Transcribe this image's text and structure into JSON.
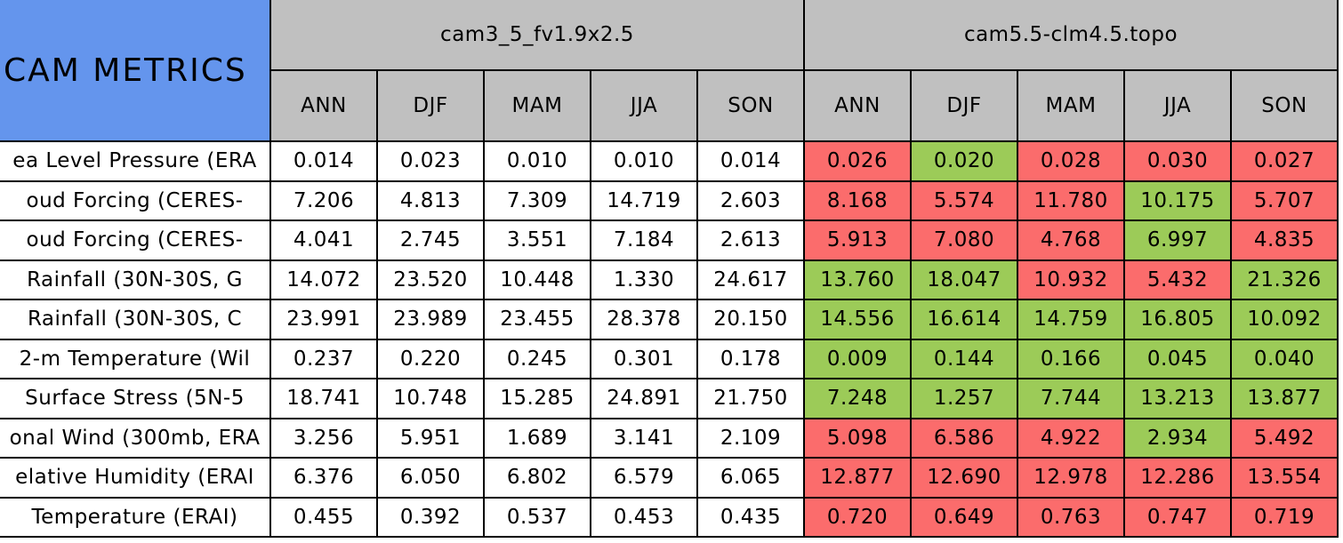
{
  "table": {
    "title": "CAM METRICS",
    "fills": {
      "header": "#c0c0c0",
      "title": "#6495ed",
      "better": "#9ccb58",
      "worse": "#fb6c6c"
    },
    "groups": [
      {
        "name": "cam3_5_fv1.9x2.5",
        "columns": [
          "ANN",
          "DJF",
          "MAM",
          "JJA",
          "SON"
        ]
      },
      {
        "name": "cam5.5-clm4.5.topo",
        "columns": [
          "ANN",
          "DJF",
          "MAM",
          "JJA",
          "SON"
        ]
      }
    ],
    "rows": [
      {
        "label": "ea Level Pressure (ERA",
        "values": [
          "0.014",
          "0.023",
          "0.010",
          "0.010",
          "0.014",
          "0.026",
          "0.020",
          "0.028",
          "0.030",
          "0.027"
        ],
        "status": [
          "worse",
          "better",
          "worse",
          "worse",
          "worse"
        ]
      },
      {
        "label": "oud Forcing (CERES-",
        "values": [
          "7.206",
          "4.813",
          "7.309",
          "14.719",
          "2.603",
          "8.168",
          "5.574",
          "11.780",
          "10.175",
          "5.707"
        ],
        "status": [
          "worse",
          "worse",
          "worse",
          "better",
          "worse"
        ]
      },
      {
        "label": "oud Forcing (CERES-",
        "values": [
          "4.041",
          "2.745",
          "3.551",
          "7.184",
          "2.613",
          "5.913",
          "7.080",
          "4.768",
          "6.997",
          "4.835"
        ],
        "status": [
          "worse",
          "worse",
          "worse",
          "better",
          "worse"
        ]
      },
      {
        "label": "Rainfall (30N-30S, G",
        "values": [
          "14.072",
          "23.520",
          "10.448",
          "1.330",
          "24.617",
          "13.760",
          "18.047",
          "10.932",
          "5.432",
          "21.326"
        ],
        "status": [
          "better",
          "better",
          "worse",
          "worse",
          "better"
        ]
      },
      {
        "label": "Rainfall (30N-30S, C",
        "values": [
          "23.991",
          "23.989",
          "23.455",
          "28.378",
          "20.150",
          "14.556",
          "16.614",
          "14.759",
          "16.805",
          "10.092"
        ],
        "status": [
          "better",
          "better",
          "better",
          "better",
          "better"
        ]
      },
      {
        "label": "2-m Temperature (Wil",
        "values": [
          "0.237",
          "0.220",
          "0.245",
          "0.301",
          "0.178",
          "0.009",
          "0.144",
          "0.166",
          "0.045",
          "0.040"
        ],
        "status": [
          "better",
          "better",
          "better",
          "better",
          "better"
        ]
      },
      {
        "label": "Surface Stress (5N-5",
        "values": [
          "18.741",
          "10.748",
          "15.285",
          "24.891",
          "21.750",
          "7.248",
          "1.257",
          "7.744",
          "13.213",
          "13.877"
        ],
        "status": [
          "better",
          "better",
          "better",
          "better",
          "better"
        ]
      },
      {
        "label": "onal Wind (300mb, ERA",
        "values": [
          "3.256",
          "5.951",
          "1.689",
          "3.141",
          "2.109",
          "5.098",
          "6.586",
          "4.922",
          "2.934",
          "5.492"
        ],
        "status": [
          "worse",
          "worse",
          "worse",
          "better",
          "worse"
        ]
      },
      {
        "label": "elative Humidity (ERAI",
        "values": [
          "6.376",
          "6.050",
          "6.802",
          "6.579",
          "6.065",
          "12.877",
          "12.690",
          "12.978",
          "12.286",
          "13.554"
        ],
        "status": [
          "worse",
          "worse",
          "worse",
          "worse",
          "worse"
        ]
      },
      {
        "label": "Temperature (ERAI)",
        "values": [
          "0.455",
          "0.392",
          "0.537",
          "0.453",
          "0.435",
          "0.720",
          "0.649",
          "0.763",
          "0.747",
          "0.719"
        ],
        "status": [
          "worse",
          "worse",
          "worse",
          "worse",
          "worse"
        ]
      }
    ]
  }
}
